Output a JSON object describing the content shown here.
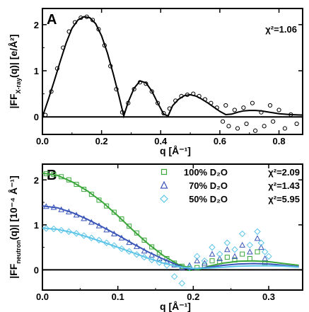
{
  "chart_data": [
    {
      "type": "scatter",
      "panel_label": "A",
      "xlabel": "q  [Å⁻¹]",
      "ylabel": "|FF_X-ray(q)|  [e/Å²]",
      "xlim": [
        0.0,
        0.88
      ],
      "ylim": [
        -0.38,
        2.35
      ],
      "xticks": [
        "0.0",
        "0.2",
        "0.4",
        "0.6",
        "0.8"
      ],
      "yticks": [
        "0",
        "1",
        "2"
      ],
      "annotation": "χ²=1.06",
      "series": [
        {
          "marker": "circle",
          "color": "#000000",
          "points": [
            [
              0.01,
              0.04
            ],
            [
              0.03,
              0.55
            ],
            [
              0.05,
              1.05
            ],
            [
              0.07,
              1.5
            ],
            [
              0.09,
              1.85
            ],
            [
              0.11,
              2.05
            ],
            [
              0.13,
              2.15
            ],
            [
              0.15,
              2.17
            ],
            [
              0.17,
              2.1
            ],
            [
              0.19,
              1.9
            ],
            [
              0.21,
              1.55
            ],
            [
              0.23,
              1.1
            ],
            [
              0.25,
              0.6
            ],
            [
              0.27,
              0.1
            ],
            [
              0.29,
              0.3
            ],
            [
              0.31,
              0.6
            ],
            [
              0.33,
              0.75
            ],
            [
              0.35,
              0.72
            ],
            [
              0.37,
              0.55
            ],
            [
              0.39,
              0.3
            ],
            [
              0.41,
              0.08
            ],
            [
              0.43,
              0.18
            ],
            [
              0.45,
              0.35
            ],
            [
              0.47,
              0.45
            ],
            [
              0.49,
              0.48
            ],
            [
              0.51,
              0.5
            ],
            [
              0.53,
              0.45
            ],
            [
              0.55,
              0.38
            ],
            [
              0.57,
              0.3
            ],
            [
              0.59,
              0.2
            ],
            [
              0.61,
              -0.1
            ],
            [
              0.62,
              0.25
            ],
            [
              0.63,
              -0.2
            ],
            [
              0.65,
              0.15
            ],
            [
              0.66,
              -0.25
            ],
            [
              0.68,
              0.2
            ],
            [
              0.69,
              -0.15
            ],
            [
              0.71,
              0.3
            ],
            [
              0.72,
              -0.3
            ],
            [
              0.74,
              0.1
            ],
            [
              0.75,
              -0.2
            ],
            [
              0.77,
              0.25
            ],
            [
              0.78,
              -0.1
            ],
            [
              0.8,
              0.15
            ],
            [
              0.82,
              -0.25
            ],
            [
              0.84,
              0.05
            ],
            [
              0.86,
              -0.15
            ]
          ]
        }
      ],
      "fit": [
        [
          0.0,
          0.0
        ],
        [
          0.02,
          0.38
        ],
        [
          0.04,
          0.78
        ],
        [
          0.06,
          1.2
        ],
        [
          0.08,
          1.6
        ],
        [
          0.1,
          1.92
        ],
        [
          0.12,
          2.1
        ],
        [
          0.14,
          2.17
        ],
        [
          0.16,
          2.15
        ],
        [
          0.18,
          2.02
        ],
        [
          0.2,
          1.76
        ],
        [
          0.22,
          1.38
        ],
        [
          0.24,
          0.92
        ],
        [
          0.26,
          0.42
        ],
        [
          0.275,
          0.02
        ],
        [
          0.29,
          0.32
        ],
        [
          0.31,
          0.62
        ],
        [
          0.33,
          0.78
        ],
        [
          0.35,
          0.74
        ],
        [
          0.37,
          0.56
        ],
        [
          0.39,
          0.3
        ],
        [
          0.41,
          0.06
        ],
        [
          0.425,
          0.02
        ],
        [
          0.44,
          0.24
        ],
        [
          0.46,
          0.38
        ],
        [
          0.48,
          0.46
        ],
        [
          0.5,
          0.48
        ],
        [
          0.52,
          0.45
        ],
        [
          0.54,
          0.38
        ],
        [
          0.56,
          0.3
        ],
        [
          0.58,
          0.21
        ],
        [
          0.6,
          0.12
        ],
        [
          0.62,
          0.05
        ],
        [
          0.64,
          0.06
        ],
        [
          0.66,
          0.1
        ],
        [
          0.68,
          0.13
        ],
        [
          0.7,
          0.14
        ],
        [
          0.72,
          0.14
        ],
        [
          0.74,
          0.13
        ],
        [
          0.76,
          0.11
        ],
        [
          0.78,
          0.09
        ],
        [
          0.8,
          0.07
        ],
        [
          0.84,
          0.05
        ],
        [
          0.88,
          0.04
        ]
      ]
    },
    {
      "type": "scatter",
      "panel_label": "B",
      "xlabel": "q  [Å⁻¹]",
      "ylabel": "|FF_neutron(q)|  [10⁻⁴ Å⁻¹]",
      "xlim": [
        0.0,
        0.345
      ],
      "ylim": [
        -0.45,
        2.35
      ],
      "xticks": [
        "0.0",
        "0.1",
        "0.2",
        "0.3"
      ],
      "yticks": [
        "0",
        "1",
        "2"
      ],
      "legend_position": "top-right",
      "series": [
        {
          "name": "100% D₂O",
          "chi": "χ²=2.09",
          "marker": "square",
          "color": "#3aa63a",
          "fit": [
            [
              0.0,
              2.15
            ],
            [
              0.02,
              2.1
            ],
            [
              0.04,
              1.95
            ],
            [
              0.06,
              1.75
            ],
            [
              0.08,
              1.5
            ],
            [
              0.1,
              1.2
            ],
            [
              0.12,
              0.88
            ],
            [
              0.14,
              0.58
            ],
            [
              0.16,
              0.32
            ],
            [
              0.18,
              0.12
            ],
            [
              0.2,
              0.02
            ],
            [
              0.21,
              0.02
            ],
            [
              0.22,
              0.08
            ],
            [
              0.24,
              0.15
            ],
            [
              0.26,
              0.19
            ],
            [
              0.28,
              0.2
            ],
            [
              0.3,
              0.18
            ],
            [
              0.32,
              0.14
            ],
            [
              0.34,
              0.1
            ]
          ],
          "points": [
            [
              0.005,
              2.14
            ],
            [
              0.015,
              2.12
            ],
            [
              0.025,
              2.07
            ],
            [
              0.035,
              2.0
            ],
            [
              0.045,
              1.9
            ],
            [
              0.055,
              1.79
            ],
            [
              0.065,
              1.68
            ],
            [
              0.075,
              1.55
            ],
            [
              0.085,
              1.42
            ],
            [
              0.095,
              1.28
            ],
            [
              0.105,
              1.13
            ],
            [
              0.115,
              0.97
            ],
            [
              0.125,
              0.82
            ],
            [
              0.135,
              0.66
            ],
            [
              0.145,
              0.51
            ],
            [
              0.155,
              0.38
            ],
            [
              0.165,
              0.25
            ],
            [
              0.175,
              0.15
            ],
            [
              0.185,
              0.08
            ],
            [
              0.195,
              0.03
            ],
            [
              0.205,
              0.05
            ],
            [
              0.215,
              0.1
            ],
            [
              0.225,
              0.2
            ],
            [
              0.235,
              0.18
            ],
            [
              0.245,
              0.28
            ],
            [
              0.255,
              0.22
            ],
            [
              0.265,
              0.35
            ],
            [
              0.275,
              0.25
            ],
            [
              0.285,
              0.4
            ],
            [
              0.295,
              0.15
            ]
          ]
        },
        {
          "name": "70% D₂O",
          "chi": "χ²=1.43",
          "marker": "triangle",
          "color": "#3a55b8",
          "fit": [
            [
              0.0,
              1.42
            ],
            [
              0.02,
              1.38
            ],
            [
              0.04,
              1.27
            ],
            [
              0.06,
              1.12
            ],
            [
              0.08,
              0.95
            ],
            [
              0.1,
              0.77
            ],
            [
              0.12,
              0.58
            ],
            [
              0.14,
              0.4
            ],
            [
              0.16,
              0.24
            ],
            [
              0.18,
              0.1
            ],
            [
              0.19,
              0.03
            ],
            [
              0.2,
              0.02
            ],
            [
              0.22,
              0.06
            ],
            [
              0.24,
              0.1
            ],
            [
              0.26,
              0.13
            ],
            [
              0.28,
              0.14
            ],
            [
              0.3,
              0.13
            ],
            [
              0.32,
              0.1
            ],
            [
              0.34,
              0.07
            ]
          ],
          "points": [
            [
              0.005,
              1.41
            ],
            [
              0.015,
              1.39
            ],
            [
              0.025,
              1.34
            ],
            [
              0.035,
              1.29
            ],
            [
              0.045,
              1.22
            ],
            [
              0.055,
              1.14
            ],
            [
              0.065,
              1.06
            ],
            [
              0.075,
              0.98
            ],
            [
              0.085,
              0.89
            ],
            [
              0.095,
              0.8
            ],
            [
              0.105,
              0.71
            ],
            [
              0.115,
              0.61
            ],
            [
              0.125,
              0.52
            ],
            [
              0.135,
              0.42
            ],
            [
              0.145,
              0.33
            ],
            [
              0.155,
              0.25
            ],
            [
              0.165,
              0.18
            ],
            [
              0.175,
              0.11
            ],
            [
              0.185,
              0.05
            ],
            [
              0.195,
              0.1
            ],
            [
              0.205,
              0.2
            ],
            [
              0.215,
              0.15
            ],
            [
              0.225,
              0.35
            ],
            [
              0.235,
              0.25
            ],
            [
              0.245,
              0.45
            ],
            [
              0.255,
              0.3
            ],
            [
              0.265,
              0.55
            ],
            [
              0.275,
              0.4
            ],
            [
              0.285,
              0.7
            ],
            [
              0.29,
              0.5
            ],
            [
              0.295,
              0.25
            ]
          ]
        },
        {
          "name": "50% D₂O",
          "chi": "χ²=5.95",
          "marker": "diamond",
          "color": "#5cc4e8",
          "fit": [
            [
              0.0,
              0.93
            ],
            [
              0.02,
              0.9
            ],
            [
              0.04,
              0.83
            ],
            [
              0.06,
              0.73
            ],
            [
              0.08,
              0.62
            ],
            [
              0.1,
              0.5
            ],
            [
              0.12,
              0.38
            ],
            [
              0.14,
              0.26
            ],
            [
              0.16,
              0.15
            ],
            [
              0.18,
              0.07
            ],
            [
              0.2,
              0.03
            ],
            [
              0.22,
              0.04
            ],
            [
              0.24,
              0.06
            ],
            [
              0.26,
              0.08
            ],
            [
              0.28,
              0.09
            ],
            [
              0.3,
              0.09
            ],
            [
              0.32,
              0.08
            ],
            [
              0.34,
              0.06
            ]
          ],
          "points": [
            [
              0.005,
              0.92
            ],
            [
              0.015,
              0.91
            ],
            [
              0.025,
              0.88
            ],
            [
              0.035,
              0.85
            ],
            [
              0.045,
              0.81
            ],
            [
              0.055,
              0.76
            ],
            [
              0.065,
              0.71
            ],
            [
              0.075,
              0.66
            ],
            [
              0.085,
              0.6
            ],
            [
              0.095,
              0.54
            ],
            [
              0.105,
              0.47
            ],
            [
              0.115,
              0.41
            ],
            [
              0.125,
              0.34
            ],
            [
              0.135,
              0.28
            ],
            [
              0.145,
              0.22
            ],
            [
              0.155,
              0.16
            ],
            [
              0.165,
              0.1
            ],
            [
              0.175,
              -0.15
            ],
            [
              0.185,
              -0.3
            ],
            [
              0.195,
              0.05
            ],
            [
              0.205,
              0.3
            ],
            [
              0.215,
              0.2
            ],
            [
              0.225,
              0.5
            ],
            [
              0.235,
              0.35
            ],
            [
              0.245,
              0.6
            ],
            [
              0.255,
              0.45
            ],
            [
              0.265,
              0.8
            ],
            [
              0.275,
              0.55
            ],
            [
              0.285,
              0.85
            ],
            [
              0.29,
              0.6
            ],
            [
              0.295,
              0.4
            ],
            [
              0.3,
              0.3
            ]
          ]
        }
      ]
    }
  ]
}
